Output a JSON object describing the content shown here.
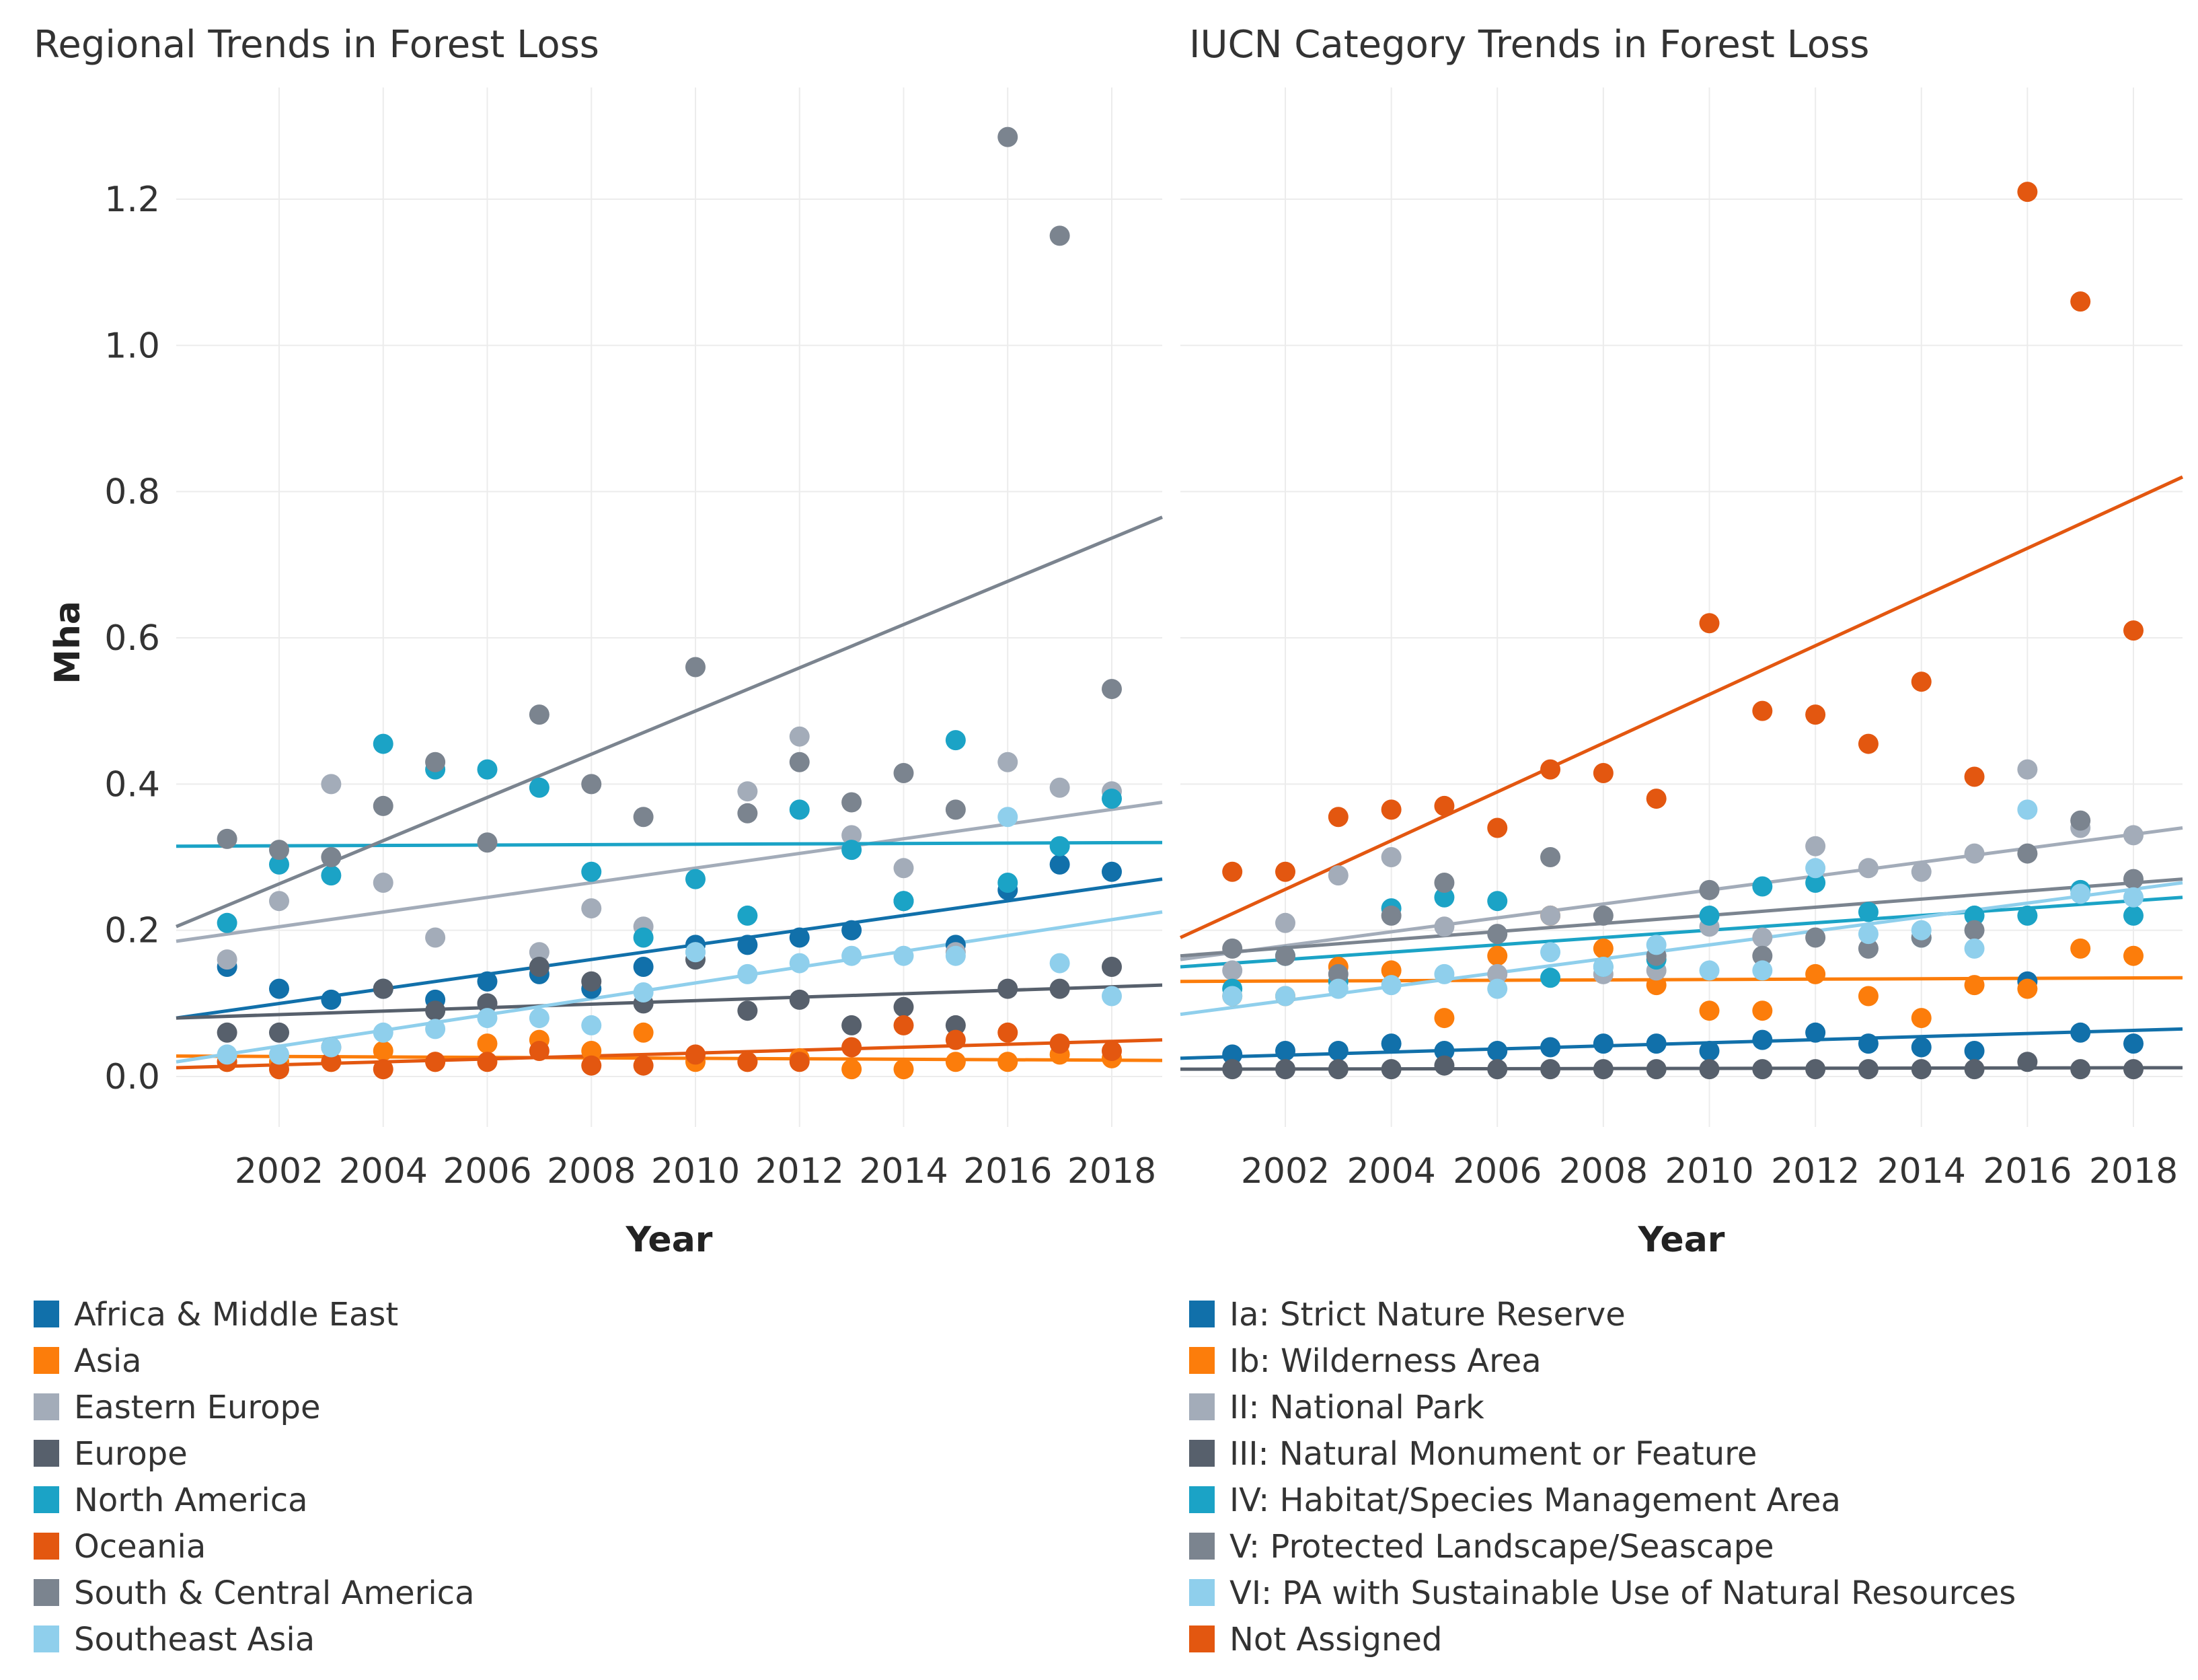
{
  "figure": {
    "ylabel": "Mha",
    "xlabel": "Year"
  },
  "chart_data": [
    {
      "type": "scatter",
      "title": "Regional Trends in Forest Loss",
      "xlabel": "Year",
      "ylabel": "Mha",
      "xlim": [
        2000,
        2019
      ],
      "ylim": [
        -0.07,
        1.35
      ],
      "xticks": [
        2002,
        2004,
        2006,
        2008,
        2010,
        2012,
        2014,
        2016,
        2018
      ],
      "yticks": [
        0.0,
        0.2,
        0.4,
        0.6,
        0.8,
        1.0,
        1.2
      ],
      "ytick_labels": [
        "0.0",
        "0.2",
        "0.4",
        "0.6",
        "0.8",
        "1.0",
        "1.2"
      ],
      "legend_position": "bottom",
      "x": [
        2001,
        2002,
        2003,
        2004,
        2005,
        2006,
        2007,
        2008,
        2009,
        2010,
        2011,
        2012,
        2013,
        2014,
        2015,
        2016,
        2017,
        2018
      ],
      "series": [
        {
          "name": "Africa & Middle East",
          "color": "#1170aa",
          "values": [
            0.15,
            0.12,
            0.105,
            0.12,
            0.105,
            0.13,
            0.14,
            0.12,
            0.15,
            0.18,
            0.18,
            0.19,
            0.2,
            0.24,
            0.18,
            0.255,
            0.29,
            0.28
          ],
          "trend": [
            0.08,
            0.27
          ]
        },
        {
          "name": "Asia",
          "color": "#fc7d0b",
          "values": [
            0.02,
            0.02,
            0.02,
            0.035,
            0.02,
            0.045,
            0.05,
            0.035,
            0.06,
            0.02,
            0.02,
            0.025,
            0.01,
            0.01,
            0.02,
            0.02,
            0.03,
            0.025
          ],
          "trend": [
            0.028,
            0.022
          ]
        },
        {
          "name": "Eastern Europe",
          "color": "#a3acb9",
          "values": [
            0.16,
            0.24,
            0.4,
            0.265,
            0.19,
            0.1,
            0.17,
            0.23,
            0.205,
            0.17,
            0.39,
            0.465,
            0.33,
            0.285,
            0.17,
            0.43,
            0.395,
            0.39
          ],
          "trend": [
            0.185,
            0.375
          ]
        },
        {
          "name": "Europe",
          "color": "#57606c",
          "values": [
            0.06,
            0.06,
            0.04,
            0.12,
            0.09,
            0.1,
            0.15,
            0.13,
            0.1,
            0.16,
            0.09,
            0.105,
            0.07,
            0.095,
            0.07,
            0.12,
            0.12,
            0.15
          ],
          "trend": [
            0.08,
            0.125
          ]
        },
        {
          "name": "North America",
          "color": "#1ba3c6",
          "values": [
            0.21,
            0.29,
            0.275,
            0.455,
            0.42,
            0.42,
            0.395,
            0.28,
            0.19,
            0.27,
            0.22,
            0.365,
            0.31,
            0.24,
            0.46,
            0.265,
            0.315,
            0.38
          ],
          "trend": [
            0.315,
            0.32
          ]
        },
        {
          "name": "Oceania",
          "color": "#e35710",
          "values": [
            0.02,
            0.01,
            0.02,
            0.01,
            0.02,
            0.02,
            0.035,
            0.015,
            0.015,
            0.03,
            0.02,
            0.02,
            0.04,
            0.07,
            0.05,
            0.06,
            0.045,
            0.035
          ],
          "trend": [
            0.012,
            0.05
          ]
        },
        {
          "name": "South & Central America",
          "color": "#7b848f",
          "values": [
            0.325,
            0.31,
            0.3,
            0.37,
            0.43,
            0.32,
            0.495,
            0.4,
            0.355,
            0.56,
            0.36,
            0.43,
            0.375,
            0.415,
            0.365,
            1.285,
            1.15,
            0.53
          ],
          "trend": [
            0.205,
            0.765
          ]
        },
        {
          "name": "Southeast Asia",
          "color": "#8fcfec",
          "values": [
            0.03,
            0.03,
            0.04,
            0.06,
            0.065,
            0.08,
            0.08,
            0.07,
            0.115,
            0.17,
            0.14,
            0.155,
            0.165,
            0.165,
            0.165,
            0.355,
            0.155,
            0.11
          ],
          "trend": [
            0.02,
            0.225
          ]
        }
      ]
    },
    {
      "type": "scatter",
      "title": "IUCN Category Trends in Forest Loss",
      "xlabel": "Year",
      "ylabel": "",
      "xlim": [
        2000,
        2019
      ],
      "ylim": [
        -0.07,
        1.35
      ],
      "xticks": [
        2002,
        2004,
        2006,
        2008,
        2010,
        2012,
        2014,
        2016,
        2018
      ],
      "yticks": [
        0.0,
        0.2,
        0.4,
        0.6,
        0.8,
        1.0,
        1.2
      ],
      "legend_position": "bottom",
      "x": [
        2001,
        2002,
        2003,
        2004,
        2005,
        2006,
        2007,
        2008,
        2009,
        2010,
        2011,
        2012,
        2013,
        2014,
        2015,
        2016,
        2017,
        2018
      ],
      "series": [
        {
          "name": "Ia: Strict Nature Reserve",
          "color": "#1170aa",
          "values": [
            0.03,
            0.035,
            0.035,
            0.045,
            0.035,
            0.035,
            0.04,
            0.045,
            0.045,
            0.035,
            0.05,
            0.06,
            0.045,
            0.04,
            0.035,
            0.13,
            0.06,
            0.045
          ],
          "trend": [
            0.025,
            0.065
          ]
        },
        {
          "name": "Ib: Wilderness Area",
          "color": "#fc7d0b",
          "values": [
            0.11,
            0.11,
            0.15,
            0.145,
            0.08,
            0.165,
            0.22,
            0.175,
            0.125,
            0.09,
            0.09,
            0.14,
            0.11,
            0.08,
            0.125,
            0.12,
            0.175,
            0.165
          ],
          "trend": [
            0.13,
            0.135
          ]
        },
        {
          "name": "II: National Park",
          "color": "#a3acb9",
          "values": [
            0.145,
            0.21,
            0.275,
            0.3,
            0.205,
            0.14,
            0.22,
            0.14,
            0.145,
            0.205,
            0.19,
            0.315,
            0.285,
            0.28,
            0.305,
            0.42,
            0.34,
            0.33
          ],
          "trend": [
            0.16,
            0.34
          ]
        },
        {
          "name": "III: Natural Monument or Feature",
          "color": "#57606c",
          "values": [
            0.01,
            0.01,
            0.01,
            0.01,
            0.015,
            0.01,
            0.01,
            0.01,
            0.01,
            0.01,
            0.01,
            0.01,
            0.01,
            0.01,
            0.01,
            0.02,
            0.01,
            0.01
          ],
          "trend": [
            0.01,
            0.012
          ]
        },
        {
          "name": "IV: Habitat/Species Management Area",
          "color": "#1ba3c6",
          "values": [
            0.12,
            0.165,
            0.13,
            0.23,
            0.245,
            0.24,
            0.135,
            0.15,
            0.16,
            0.22,
            0.26,
            0.265,
            0.225,
            0.19,
            0.22,
            0.22,
            0.255,
            0.22
          ],
          "trend": [
            0.15,
            0.245
          ]
        },
        {
          "name": "V: Protected Landscape/Seascape",
          "color": "#7b848f",
          "values": [
            0.175,
            0.165,
            0.14,
            0.22,
            0.265,
            0.195,
            0.3,
            0.22,
            0.165,
            0.255,
            0.165,
            0.19,
            0.175,
            0.19,
            0.2,
            0.305,
            0.35,
            0.27
          ],
          "trend": [
            0.165,
            0.27
          ]
        },
        {
          "name": "VI: PA with Sustainable Use of Natural Resources",
          "color": "#8fcfec",
          "values": [
            0.11,
            0.11,
            0.12,
            0.125,
            0.14,
            0.12,
            0.17,
            0.15,
            0.18,
            0.145,
            0.145,
            0.285,
            0.195,
            0.2,
            0.175,
            0.365,
            0.25,
            0.245
          ],
          "trend": [
            0.085,
            0.265
          ]
        },
        {
          "name": "Not Assigned",
          "color": "#e35710",
          "values": [
            0.28,
            0.28,
            0.355,
            0.365,
            0.37,
            0.34,
            0.42,
            0.415,
            0.38,
            0.62,
            0.5,
            0.495,
            0.455,
            0.54,
            0.41,
            1.21,
            1.06,
            0.61
          ],
          "trend": [
            0.19,
            0.82
          ]
        }
      ]
    }
  ]
}
